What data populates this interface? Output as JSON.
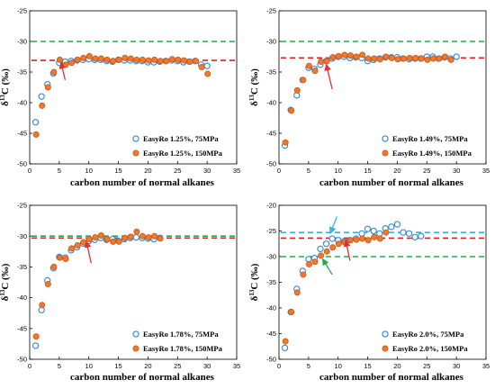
{
  "colors": {
    "series1_edge": "#2E86D6",
    "series2_fill": "#F2762E",
    "series2_edge": "#C65A14",
    "line_green": "#1FAF4A",
    "line_red": "#E02020",
    "line_blue": "#3AB0E0",
    "arrow_red": "#E53030",
    "arrow_blue": "#3AB0E0",
    "arrow_green": "#1FAF4A"
  },
  "chart_data": [
    {
      "type": "scatter",
      "title": "",
      "xlabel": "carbon number of normal alkanes",
      "ylabel": "δ13C (‰)",
      "xlim": [
        0,
        35
      ],
      "ylim": [
        -50,
        -25
      ],
      "xticks": [
        "0",
        "5",
        "10",
        "15",
        "20",
        "25",
        "30",
        "35"
      ],
      "yticks": [
        "-50",
        "-45",
        "-40",
        "-35",
        "-30",
        "-25"
      ],
      "legend_position": "bottom-right",
      "series": [
        {
          "name": "EasyRo 1.25%, 75MPa",
          "marker": "open-circle",
          "points": [
            [
              1,
              -43.2
            ],
            [
              2,
              -39.0
            ],
            [
              3,
              -37.0
            ],
            [
              4,
              -35.2
            ],
            [
              5,
              -33.5
            ],
            [
              6,
              -33.3
            ],
            [
              7,
              -33.2
            ],
            [
              8,
              -33.1
            ],
            [
              9,
              -33.0
            ],
            [
              10,
              -32.9
            ],
            [
              11,
              -33.0
            ],
            [
              12,
              -33.0
            ],
            [
              13,
              -33.2
            ],
            [
              14,
              -33.3
            ],
            [
              15,
              -33.0
            ],
            [
              16,
              -33.1
            ],
            [
              17,
              -33.1
            ],
            [
              18,
              -33.2
            ],
            [
              19,
              -33.2
            ],
            [
              20,
              -33.4
            ],
            [
              21,
              -33.4
            ],
            [
              22,
              -33.3
            ],
            [
              23,
              -33.2
            ],
            [
              24,
              -33.1
            ],
            [
              25,
              -33.2
            ],
            [
              26,
              -33.4
            ],
            [
              27,
              -33.3
            ],
            [
              28,
              -33.2
            ],
            [
              29,
              -33.8
            ],
            [
              30,
              -34.0
            ]
          ]
        },
        {
          "name": "EasyRo 1.25%, 150MPa",
          "marker": "filled-circle",
          "points": [
            [
              1,
              -45.2
            ],
            [
              2,
              -40.5
            ],
            [
              3,
              -37.5
            ],
            [
              4,
              -35.0
            ],
            [
              5,
              -33.0
            ],
            [
              6,
              -33.8
            ],
            [
              7,
              -33.5
            ],
            [
              8,
              -33.0
            ],
            [
              9,
              -32.7
            ],
            [
              10,
              -32.4
            ],
            [
              11,
              -32.8
            ],
            [
              12,
              -32.8
            ],
            [
              13,
              -33.0
            ],
            [
              14,
              -33.2
            ],
            [
              15,
              -33.0
            ],
            [
              16,
              -32.7
            ],
            [
              17,
              -32.8
            ],
            [
              18,
              -33.0
            ],
            [
              19,
              -33.0
            ],
            [
              20,
              -33.1
            ],
            [
              21,
              -33.0
            ],
            [
              22,
              -33.2
            ],
            [
              23,
              -33.2
            ],
            [
              24,
              -32.9
            ],
            [
              25,
              -33.0
            ],
            [
              26,
              -33.1
            ],
            [
              27,
              -33.3
            ],
            [
              28,
              -33.2
            ],
            [
              29,
              -34.2
            ],
            [
              30,
              -35.3
            ]
          ]
        }
      ],
      "hlines": [
        {
          "y": -30.0,
          "color": "line_green"
        },
        {
          "y": -33.1,
          "color": "line_red"
        }
      ],
      "arrows": [
        {
          "from": [
            6.0,
            -36.3
          ],
          "to": [
            5.3,
            -33.5
          ],
          "color": "arrow_red"
        }
      ]
    },
    {
      "type": "scatter",
      "title": "",
      "xlabel": "carbon number of normal alkanes",
      "ylabel": "δ13C (‰)",
      "xlim": [
        0,
        35
      ],
      "ylim": [
        -50,
        -25
      ],
      "xticks": [
        "0",
        "5",
        "10",
        "15",
        "20",
        "25",
        "30",
        "35"
      ],
      "yticks": [
        "-50",
        "-45",
        "-40",
        "-35",
        "-30",
        "-25"
      ],
      "legend_position": "bottom-right",
      "series": [
        {
          "name": "EasyRo 1.49%, 75MPa",
          "marker": "open-circle",
          "points": [
            [
              1,
              -47.0
            ],
            [
              2,
              -41.2
            ],
            [
              3,
              -38.8
            ],
            [
              4,
              -36.3
            ],
            [
              5,
              -34.3
            ],
            [
              6,
              -34.5
            ],
            [
              7,
              -33.8
            ],
            [
              8,
              -33.2
            ],
            [
              9,
              -32.8
            ],
            [
              10,
              -32.5
            ],
            [
              11,
              -32.5
            ],
            [
              12,
              -32.7
            ],
            [
              13,
              -32.6
            ],
            [
              14,
              -32.7
            ],
            [
              15,
              -33.2
            ],
            [
              16,
              -33.0
            ],
            [
              17,
              -32.8
            ],
            [
              18,
              -32.6
            ],
            [
              19,
              -32.6
            ],
            [
              20,
              -32.6
            ],
            [
              21,
              -32.8
            ],
            [
              22,
              -32.9
            ],
            [
              23,
              -32.8
            ],
            [
              24,
              -32.8
            ],
            [
              25,
              -32.5
            ],
            [
              26,
              -32.5
            ],
            [
              27,
              -32.8
            ],
            [
              28,
              -32.6
            ],
            [
              29,
              -32.8
            ],
            [
              30,
              -32.5
            ]
          ]
        },
        {
          "name": "EasyRo 1.49%, 150MPa",
          "marker": "filled-circle",
          "points": [
            [
              1,
              -46.5
            ],
            [
              2,
              -41.3
            ],
            [
              3,
              -38.0
            ],
            [
              4,
              -36.3
            ],
            [
              5,
              -34.0
            ],
            [
              6,
              -34.8
            ],
            [
              7,
              -33.3
            ],
            [
              8,
              -33.2
            ],
            [
              9,
              -32.6
            ],
            [
              10,
              -32.4
            ],
            [
              11,
              -32.2
            ],
            [
              12,
              -32.3
            ],
            [
              13,
              -32.5
            ],
            [
              14,
              -32.2
            ],
            [
              15,
              -32.8
            ],
            [
              16,
              -32.8
            ],
            [
              17,
              -32.9
            ],
            [
              18,
              -32.5
            ],
            [
              19,
              -32.7
            ],
            [
              20,
              -32.9
            ],
            [
              21,
              -32.8
            ],
            [
              22,
              -32.7
            ],
            [
              23,
              -32.7
            ],
            [
              24,
              -32.8
            ],
            [
              25,
              -33.0
            ],
            [
              26,
              -32.8
            ],
            [
              27,
              -32.8
            ],
            [
              28,
              -32.5
            ],
            [
              29,
              -33.0
            ]
          ]
        }
      ],
      "hlines": [
        {
          "y": -30.0,
          "color": "line_green"
        },
        {
          "y": -32.7,
          "color": "line_red"
        }
      ],
      "arrows": [
        {
          "from": [
            9.0,
            -37.8
          ],
          "to": [
            8.0,
            -33.8
          ],
          "color": "arrow_red"
        }
      ]
    },
    {
      "type": "scatter",
      "title": "",
      "xlabel": "carbon number of normal alkanes",
      "ylabel": "δ13C (‰)",
      "xlim": [
        0,
        35
      ],
      "ylim": [
        -50,
        -25
      ],
      "xticks": [
        "0",
        "5",
        "10",
        "15",
        "20",
        "25",
        "30",
        "35"
      ],
      "yticks": [
        "-50",
        "-45",
        "-40",
        "-35",
        "-30",
        "-25"
      ],
      "legend_position": "bottom-right",
      "series": [
        {
          "name": "EasyRo 1.78%, 75MPa",
          "marker": "open-circle",
          "points": [
            [
              1,
              -47.8
            ],
            [
              2,
              -42.0
            ],
            [
              3,
              -37.2
            ],
            [
              4,
              -35.2
            ],
            [
              5,
              -33.4
            ],
            [
              6,
              -33.5
            ],
            [
              7,
              -32.3
            ],
            [
              8,
              -31.8
            ],
            [
              9,
              -31.2
            ],
            [
              10,
              -30.8
            ],
            [
              11,
              -30.6
            ],
            [
              12,
              -30.3
            ],
            [
              13,
              -30.6
            ],
            [
              14,
              -30.5
            ],
            [
              15,
              -30.8
            ],
            [
              16,
              -30.5
            ],
            [
              17,
              -30.3
            ],
            [
              18,
              -30.2
            ],
            [
              19,
              -30.3
            ],
            [
              20,
              -30.4
            ],
            [
              21,
              -30.5
            ],
            [
              22,
              -30.3
            ]
          ]
        },
        {
          "name": "EasyRo 1.78%, 150MPa",
          "marker": "filled-circle",
          "points": [
            [
              1,
              -46.3
            ],
            [
              2,
              -41.2
            ],
            [
              3,
              -37.8
            ],
            [
              4,
              -35.0
            ],
            [
              5,
              -33.5
            ],
            [
              6,
              -33.7
            ],
            [
              7,
              -32.0
            ],
            [
              8,
              -31.5
            ],
            [
              9,
              -31.0
            ],
            [
              10,
              -30.5
            ],
            [
              11,
              -30.2
            ],
            [
              12,
              -29.9
            ],
            [
              13,
              -30.5
            ],
            [
              14,
              -30.9
            ],
            [
              15,
              -30.9
            ],
            [
              16,
              -30.3
            ],
            [
              17,
              -30.1
            ],
            [
              18,
              -29.3
            ],
            [
              19,
              -30.0
            ],
            [
              20,
              -30.2
            ],
            [
              21,
              -30.0
            ],
            [
              22,
              -30.4
            ]
          ]
        }
      ],
      "hlines": [
        {
          "y": -30.0,
          "color": "line_green"
        },
        {
          "y": -30.3,
          "color": "line_red"
        }
      ],
      "arrows": [
        {
          "from": [
            10.4,
            -34.4
          ],
          "to": [
            9.6,
            -30.9
          ],
          "color": "arrow_red"
        }
      ]
    },
    {
      "type": "scatter",
      "title": "",
      "xlabel": "carbon number of normal alkanes",
      "ylabel": "δ13C (‰)",
      "xlim": [
        0,
        35
      ],
      "ylim": [
        -50,
        -20
      ],
      "xticks": [
        "0",
        "5",
        "10",
        "15",
        "20",
        "25",
        "30",
        "35"
      ],
      "yticks": [
        "-50",
        "-45",
        "-40",
        "-35",
        "-30",
        "-25",
        "-20"
      ],
      "legend_position": "bottom-right",
      "series": [
        {
          "name": "EasyRo 2.0%, 75MPa",
          "marker": "open-circle",
          "points": [
            [
              1,
              -47.8
            ],
            [
              2,
              -40.8
            ],
            [
              3,
              -36.3
            ],
            [
              4,
              -32.8
            ],
            [
              5,
              -30.5
            ],
            [
              6,
              -30.3
            ],
            [
              7,
              -28.5
            ],
            [
              8,
              -27.5
            ],
            [
              9,
              -26.5
            ],
            [
              10,
              -26.8
            ],
            [
              11,
              -27.0
            ],
            [
              12,
              -26.8
            ],
            [
              13,
              -26.5
            ],
            [
              14,
              -25.5
            ],
            [
              15,
              -24.6
            ],
            [
              16,
              -25.0
            ],
            [
              17,
              -25.5
            ],
            [
              18,
              -24.5
            ],
            [
              19,
              -24.2
            ],
            [
              20,
              -23.7
            ],
            [
              21,
              -25.3
            ],
            [
              22,
              -25.5
            ],
            [
              23,
              -26.2
            ],
            [
              24,
              -26.0
            ]
          ]
        },
        {
          "name": "EasyRo 2.0%, 150MPa",
          "marker": "filled-circle",
          "points": [
            [
              1,
              -46.5
            ],
            [
              2,
              -40.8
            ],
            [
              3,
              -37.0
            ],
            [
              4,
              -33.5
            ],
            [
              5,
              -31.5
            ],
            [
              6,
              -31.0
            ],
            [
              7,
              -29.8
            ],
            [
              8,
              -29.0
            ],
            [
              9,
              -28.2
            ],
            [
              10,
              -27.5
            ],
            [
              11,
              -27.2
            ],
            [
              12,
              -26.8
            ],
            [
              13,
              -26.7
            ],
            [
              14,
              -26.5
            ],
            [
              15,
              -26.8
            ],
            [
              16,
              -26.2
            ],
            [
              17,
              -26.5
            ],
            [
              18,
              -25.3
            ]
          ]
        }
      ],
      "hlines": [
        {
          "y": -30.0,
          "color": "line_green"
        },
        {
          "y": -26.4,
          "color": "line_red"
        },
        {
          "y": -25.3,
          "color": "line_blue"
        }
      ],
      "arrows": [
        {
          "from": [
            12.0,
            -30.8
          ],
          "to": [
            11.3,
            -26.9
          ],
          "color": "arrow_red"
        },
        {
          "from": [
            9.8,
            -22.2
          ],
          "to": [
            8.7,
            -25.4
          ],
          "color": "arrow_blue"
        },
        {
          "from": [
            9.0,
            -33.5
          ],
          "to": [
            7.4,
            -30.5
          ],
          "color": "arrow_green"
        }
      ]
    }
  ]
}
